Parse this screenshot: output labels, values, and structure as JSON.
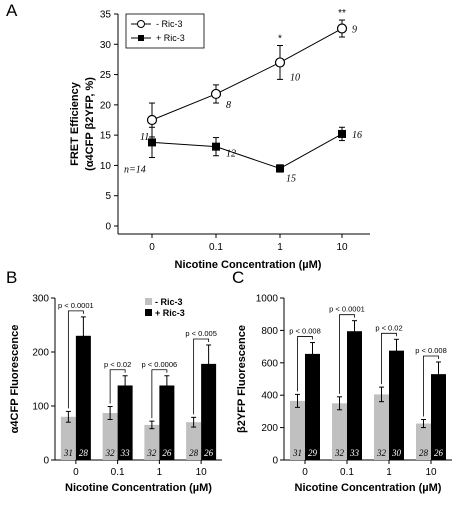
{
  "chart_data": [
    {
      "panel": "A",
      "type": "line",
      "categories": [
        "0",
        "0.1",
        "1",
        "10"
      ],
      "xlabel": "Nicotine Concentration (µM)",
      "ylabel_lines": [
        "FRET Efficiency",
        "(α4CFP β2YFP, %)"
      ],
      "ylim": [
        0,
        35
      ],
      "yticks": [
        0,
        5,
        10,
        15,
        20,
        25,
        30,
        35
      ],
      "legend": {
        "placement": "top-left"
      },
      "series": [
        {
          "name": "- Ric-3",
          "marker": "open-circle",
          "values": [
            17.5,
            21.8,
            27.0,
            32.6
          ],
          "errors": [
            2.8,
            1.5,
            2.8,
            1.4
          ],
          "n_labels": [
            "11",
            "8",
            "10",
            "9"
          ],
          "significance": [
            "",
            "",
            "*",
            "**"
          ]
        },
        {
          "name": "+ Ric-3",
          "marker": "filled-square",
          "values": [
            13.8,
            13.1,
            9.5,
            15.2
          ],
          "errors": [
            2.5,
            1.5,
            0.6,
            1.1
          ],
          "n_labels": [
            "n=14",
            "12",
            "15",
            "16"
          ]
        }
      ]
    },
    {
      "panel": "B",
      "type": "bar",
      "categories": [
        "0",
        "0.1",
        "1",
        "10"
      ],
      "xlabel": "Nicotine Concentration (µM)",
      "ylabel": "α4CFP Fluorescence",
      "ylim": [
        0,
        300
      ],
      "yticks": [
        0,
        100,
        200,
        300
      ],
      "legend": {
        "placement": "top-right"
      },
      "series": [
        {
          "name": "- Ric-3",
          "color": "#c0c0c0",
          "values": [
            80,
            87,
            65,
            70
          ],
          "errors": [
            10,
            12,
            7,
            9
          ],
          "n_labels": [
            "31",
            "32",
            "32",
            "28"
          ]
        },
        {
          "name": "+ Ric-3",
          "color": "#000000",
          "values": [
            230,
            138,
            138,
            178
          ],
          "errors": [
            35,
            18,
            18,
            35
          ],
          "n_labels": [
            "28",
            "33",
            "26",
            "26"
          ]
        }
      ],
      "p_values": [
        "p < 0.0001",
        "p < 0.02",
        "p < 0.0006",
        "p < 0.005"
      ]
    },
    {
      "panel": "C",
      "type": "bar",
      "categories": [
        "0",
        "0.1",
        "1",
        "10"
      ],
      "xlabel": "Nicotine Concentration (µM)",
      "ylabel": "β2YFP Fluorescence",
      "ylim": [
        0,
        1000
      ],
      "yticks": [
        0,
        200,
        400,
        600,
        800,
        1000
      ],
      "series": [
        {
          "name": "- Ric-3",
          "color": "#c0c0c0",
          "values": [
            365,
            350,
            405,
            225
          ],
          "errors": [
            40,
            40,
            45,
            25
          ],
          "n_labels": [
            "31",
            "32",
            "32",
            "28"
          ]
        },
        {
          "name": "+ Ric-3",
          "color": "#000000",
          "values": [
            655,
            795,
            675,
            530
          ],
          "errors": [
            70,
            65,
            70,
            75
          ],
          "n_labels": [
            "29",
            "33",
            "30",
            "26"
          ]
        }
      ],
      "p_values": [
        "p < 0.008",
        "p < 0.0001",
        "p < 0.02",
        "p < 0.008"
      ]
    }
  ]
}
